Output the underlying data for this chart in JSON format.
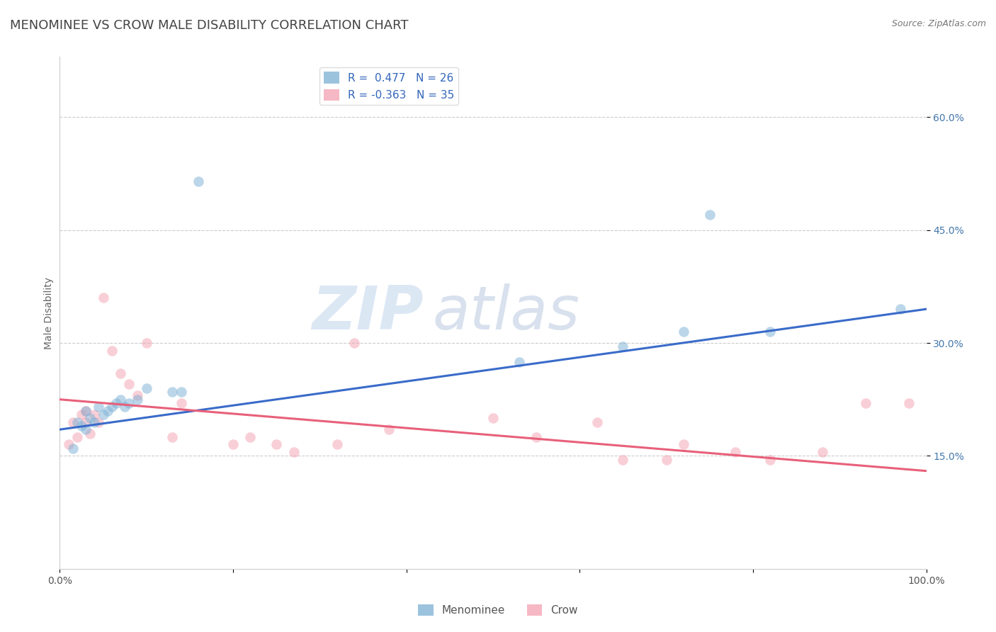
{
  "title": "MENOMINEE VS CROW MALE DISABILITY CORRELATION CHART",
  "source": "Source: ZipAtlas.com",
  "ylabel": "Male Disability",
  "legend_blue_label": "Menominee",
  "legend_pink_label": "Crow",
  "legend_blue_r": "R =  0.477",
  "legend_blue_n": "N = 26",
  "legend_pink_r": "R = -0.363",
  "legend_pink_n": "N = 35",
  "ytick_labels": [
    "15.0%",
    "30.0%",
    "45.0%",
    "60.0%"
  ],
  "ytick_values": [
    0.15,
    0.3,
    0.45,
    0.6
  ],
  "xlim": [
    0.0,
    1.0
  ],
  "ylim": [
    0.0,
    0.68
  ],
  "blue_color": "#7BAFD4",
  "pink_color": "#F4A0B0",
  "blue_line_color": "#3A6BC9",
  "pink_line_color": "#E8607A",
  "watermark_zip": "ZIP",
  "watermark_atlas": "atlas",
  "blue_points_x": [
    0.015,
    0.02,
    0.025,
    0.03,
    0.03,
    0.035,
    0.04,
    0.045,
    0.05,
    0.055,
    0.06,
    0.065,
    0.07,
    0.075,
    0.08,
    0.09,
    0.1,
    0.13,
    0.14,
    0.16,
    0.53,
    0.65,
    0.72,
    0.75,
    0.82,
    0.97
  ],
  "blue_points_y": [
    0.16,
    0.195,
    0.19,
    0.21,
    0.185,
    0.2,
    0.195,
    0.215,
    0.205,
    0.21,
    0.215,
    0.22,
    0.225,
    0.215,
    0.22,
    0.225,
    0.24,
    0.235,
    0.235,
    0.515,
    0.275,
    0.295,
    0.315,
    0.47,
    0.315,
    0.345
  ],
  "pink_points_x": [
    0.01,
    0.015,
    0.02,
    0.025,
    0.03,
    0.03,
    0.035,
    0.04,
    0.045,
    0.05,
    0.06,
    0.07,
    0.08,
    0.09,
    0.1,
    0.13,
    0.14,
    0.2,
    0.22,
    0.25,
    0.27,
    0.32,
    0.34,
    0.38,
    0.5,
    0.55,
    0.62,
    0.65,
    0.7,
    0.72,
    0.78,
    0.82,
    0.88,
    0.93,
    0.98
  ],
  "pink_points_y": [
    0.165,
    0.195,
    0.175,
    0.205,
    0.195,
    0.21,
    0.18,
    0.205,
    0.195,
    0.36,
    0.29,
    0.26,
    0.245,
    0.23,
    0.3,
    0.175,
    0.22,
    0.165,
    0.175,
    0.165,
    0.155,
    0.165,
    0.3,
    0.185,
    0.2,
    0.175,
    0.195,
    0.145,
    0.145,
    0.165,
    0.155,
    0.145,
    0.155,
    0.22,
    0.22
  ],
  "blue_line_x": [
    0.0,
    1.0
  ],
  "blue_line_y_start": 0.185,
  "blue_line_y_end": 0.345,
  "pink_line_x": [
    0.0,
    1.0
  ],
  "pink_line_y_start": 0.225,
  "pink_line_y_end": 0.13,
  "marker_size": 110,
  "marker_alpha": 0.5,
  "line_width": 2.2,
  "grid_color": "#CCCCCC",
  "background_color": "#FFFFFF",
  "title_color": "#444444",
  "title_fontsize": 13,
  "axis_label_fontsize": 10,
  "tick_fontsize": 10,
  "legend_fontsize": 11,
  "source_fontsize": 9
}
